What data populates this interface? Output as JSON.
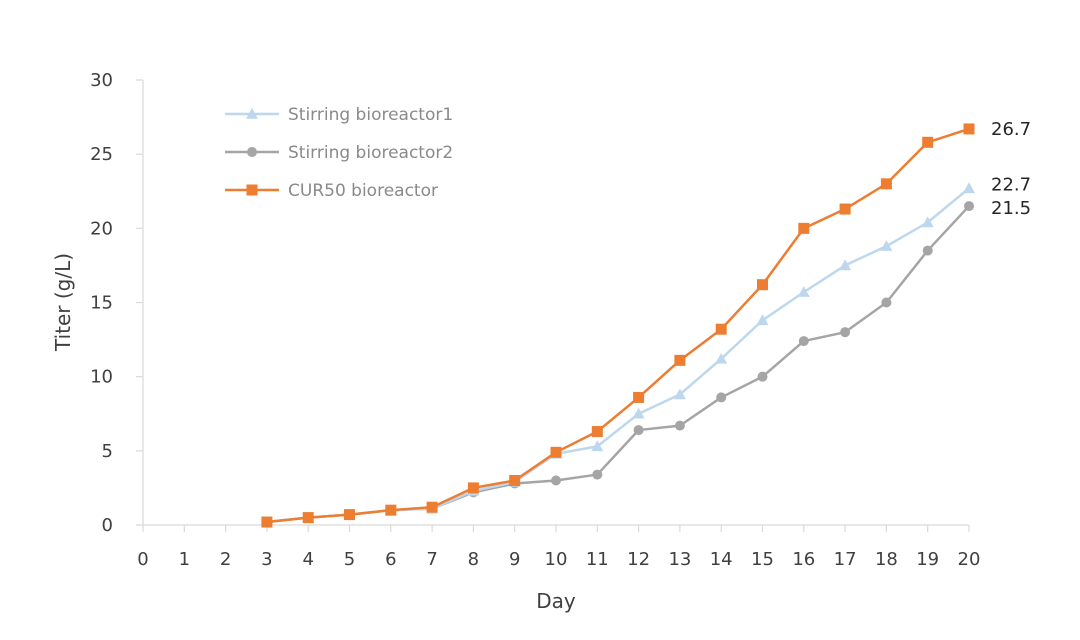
{
  "chart_data": {
    "type": "line",
    "title": "",
    "xlabel": "Day",
    "ylabel": "Titer (g/L)",
    "xlim": [
      0,
      20
    ],
    "ylim": [
      0,
      30
    ],
    "x_ticks": [
      0,
      1,
      2,
      3,
      4,
      5,
      6,
      7,
      8,
      9,
      10,
      11,
      12,
      13,
      14,
      15,
      16,
      17,
      18,
      19,
      20
    ],
    "y_ticks": [
      0,
      5,
      10,
      15,
      20,
      25,
      30
    ],
    "grid": false,
    "legend_position": "top-left",
    "x": [
      3,
      4,
      5,
      6,
      7,
      8,
      9,
      10,
      11,
      12,
      13,
      14,
      15,
      16,
      17,
      18,
      19,
      20
    ],
    "series": [
      {
        "name": "Stirring bioreactor1",
        "color": "#bdd7ee",
        "marker": "triangle",
        "values": [
          0.2,
          0.5,
          0.7,
          1.0,
          1.1,
          2.3,
          2.9,
          4.8,
          5.3,
          7.5,
          8.8,
          11.2,
          13.8,
          15.7,
          17.5,
          18.8,
          20.4,
          22.7
        ],
        "end_label": "22.7"
      },
      {
        "name": "Stirring bioreactor2",
        "color": "#a5a5a5",
        "marker": "circle",
        "values": [
          0.2,
          0.5,
          0.7,
          1.0,
          1.1,
          2.2,
          2.8,
          3.0,
          3.4,
          6.4,
          6.7,
          8.6,
          10.0,
          12.4,
          13.0,
          15.0,
          18.5,
          21.5
        ],
        "end_label": "21.5"
      },
      {
        "name": "CUR50 bioreactor",
        "color": "#ed7d31",
        "marker": "square",
        "values": [
          0.2,
          0.5,
          0.7,
          1.0,
          1.2,
          2.5,
          3.0,
          4.9,
          6.3,
          8.6,
          11.1,
          13.2,
          16.2,
          20.0,
          21.3,
          23.0,
          25.8,
          26.7
        ],
        "end_label": "26.7"
      }
    ]
  }
}
